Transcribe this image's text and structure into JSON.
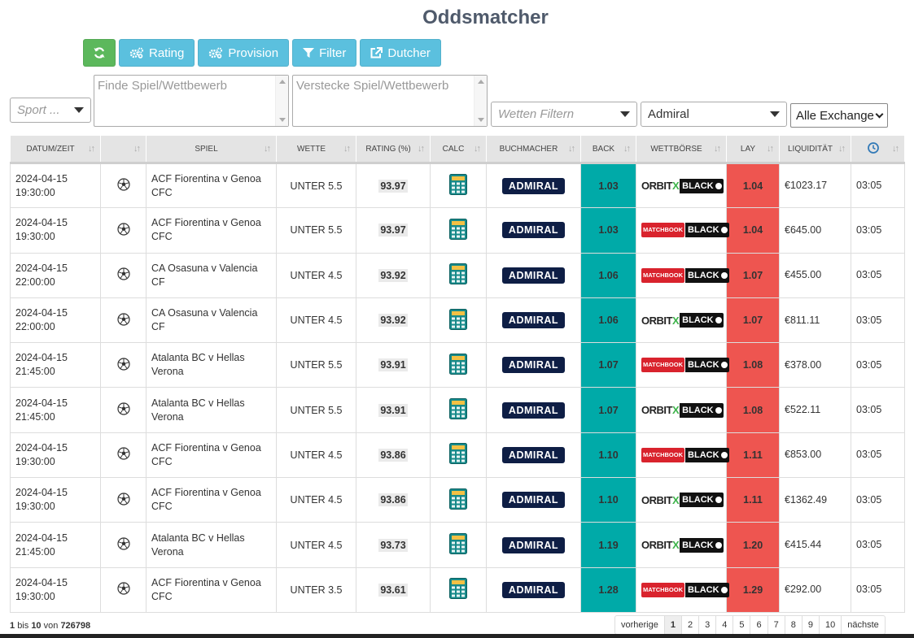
{
  "title": "Oddsmatcher",
  "toolbar": {
    "rating_label": "Rating",
    "provision_label": "Provision",
    "filter_label": "Filter",
    "dutcher_label": "Dutcher"
  },
  "filters": {
    "sport_placeholder": "Sport ...",
    "find_placeholder": "Finde Spiel/Wettbewerb",
    "hide_placeholder": "Verstecke Spiel/Wettbewerb",
    "bets_placeholder": "Wetten Filtern",
    "bookmaker_value": "Admiral",
    "exchange_value": "Alle Exchange"
  },
  "columns": [
    "DATUM/ZEIT",
    "",
    "SPIEL",
    "WETTE",
    "RATING (%)",
    "CALC",
    "BUCHMACHER",
    "BACK",
    "WETTBÖRSE",
    "LAY",
    "LIQUIDITÄT",
    ""
  ],
  "rows": [
    {
      "date": "2024-04-15",
      "time": "19:30:00",
      "game": "ACF Fiorentina v Genoa CFC",
      "bet": "UNTER 5.5",
      "rating": "93.97",
      "bookmaker": "ADMIRAL",
      "back": "1.03",
      "exchange": "orbitx",
      "lay": "1.04",
      "liquidity": "€1023.17",
      "age": "03:05"
    },
    {
      "date": "2024-04-15",
      "time": "19:30:00",
      "game": "ACF Fiorentina v Genoa CFC",
      "bet": "UNTER 5.5",
      "rating": "93.97",
      "bookmaker": "ADMIRAL",
      "back": "1.03",
      "exchange": "matchbook",
      "lay": "1.04",
      "liquidity": "€645.00",
      "age": "03:05"
    },
    {
      "date": "2024-04-15",
      "time": "22:00:00",
      "game": "CA Osasuna v Valencia CF",
      "bet": "UNTER 4.5",
      "rating": "93.92",
      "bookmaker": "ADMIRAL",
      "back": "1.06",
      "exchange": "matchbook",
      "lay": "1.07",
      "liquidity": "€455.00",
      "age": "03:05"
    },
    {
      "date": "2024-04-15",
      "time": "22:00:00",
      "game": "CA Osasuna v Valencia CF",
      "bet": "UNTER 4.5",
      "rating": "93.92",
      "bookmaker": "ADMIRAL",
      "back": "1.06",
      "exchange": "orbitx",
      "lay": "1.07",
      "liquidity": "€811.11",
      "age": "03:05"
    },
    {
      "date": "2024-04-15",
      "time": "21:45:00",
      "game": "Atalanta BC v Hellas Verona",
      "bet": "UNTER 5.5",
      "rating": "93.91",
      "bookmaker": "ADMIRAL",
      "back": "1.07",
      "exchange": "matchbook",
      "lay": "1.08",
      "liquidity": "€378.00",
      "age": "03:05"
    },
    {
      "date": "2024-04-15",
      "time": "21:45:00",
      "game": "Atalanta BC v Hellas Verona",
      "bet": "UNTER 5.5",
      "rating": "93.91",
      "bookmaker": "ADMIRAL",
      "back": "1.07",
      "exchange": "orbitx",
      "lay": "1.08",
      "liquidity": "€522.11",
      "age": "03:05"
    },
    {
      "date": "2024-04-15",
      "time": "19:30:00",
      "game": "ACF Fiorentina v Genoa CFC",
      "bet": "UNTER 4.5",
      "rating": "93.86",
      "bookmaker": "ADMIRAL",
      "back": "1.10",
      "exchange": "matchbook",
      "lay": "1.11",
      "liquidity": "€853.00",
      "age": "03:05"
    },
    {
      "date": "2024-04-15",
      "time": "19:30:00",
      "game": "ACF Fiorentina v Genoa CFC",
      "bet": "UNTER 4.5",
      "rating": "93.86",
      "bookmaker": "ADMIRAL",
      "back": "1.10",
      "exchange": "orbitx",
      "lay": "1.11",
      "liquidity": "€1362.49",
      "age": "03:05"
    },
    {
      "date": "2024-04-15",
      "time": "21:45:00",
      "game": "Atalanta BC v Hellas Verona",
      "bet": "UNTER 4.5",
      "rating": "93.73",
      "bookmaker": "ADMIRAL",
      "back": "1.19",
      "exchange": "orbitx",
      "lay": "1.20",
      "liquidity": "€415.44",
      "age": "03:05"
    },
    {
      "date": "2024-04-15",
      "time": "19:30:00",
      "game": "ACF Fiorentina v Genoa CFC",
      "bet": "UNTER 3.5",
      "rating": "93.61",
      "bookmaker": "ADMIRAL",
      "back": "1.28",
      "exchange": "matchbook",
      "lay": "1.29",
      "liquidity": "€292.00",
      "age": "03:05"
    }
  ],
  "exchange_labels": {
    "orbit": "ORBIT",
    "x": "X",
    "matchbook": "MATCHBOOK",
    "black": "BLACK"
  },
  "footer": {
    "from": "1",
    "bis": "bis",
    "to": "10",
    "von": "von",
    "total": "726798"
  },
  "pagination": {
    "prev": "vorherige",
    "pages": [
      "1",
      "2",
      "3",
      "4",
      "5",
      "6",
      "7",
      "8",
      "9",
      "10"
    ],
    "active": "1",
    "next": "nächste"
  },
  "colors": {
    "back": "#00aaa8",
    "lay": "#ee5550",
    "green_button": "#5cb85c",
    "blue_button": "#5bc0de",
    "admiral_bg": "#0e1e45"
  }
}
